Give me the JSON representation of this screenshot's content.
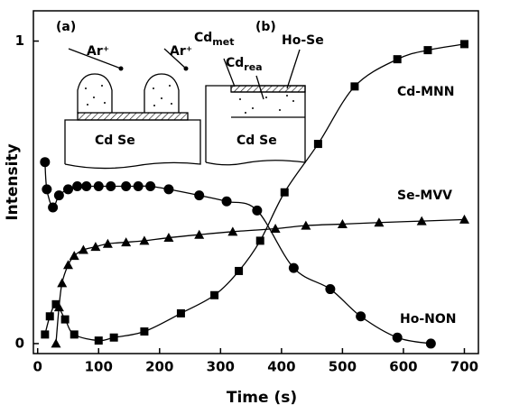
{
  "chart_data": {
    "type": "scatter",
    "x_label": "Time (s)",
    "y_label": "Intensity",
    "xlim": [
      -7,
      723
    ],
    "ylim": [
      -0.033,
      1.1
    ],
    "xticks": [
      0,
      100,
      200,
      300,
      400,
      500,
      600,
      700
    ],
    "yticks": [
      0,
      1
    ],
    "annotations": [
      "(a)",
      "(b)",
      "Ar⁺",
      "Ar⁺",
      "Cd Se",
      "Cd Se",
      "Ho-Se"
    ],
    "subscripted": [
      [
        "Cd",
        "met"
      ],
      [
        "Cd",
        "rea"
      ]
    ],
    "series": [
      {
        "name": "Cd-MNN",
        "marker": "square",
        "color": "#000000",
        "x": [
          12,
          20,
          30,
          45,
          60,
          100,
          125,
          175,
          235,
          290,
          330,
          365,
          405,
          460,
          520,
          590,
          640,
          700
        ],
        "values": [
          0.03,
          0.09,
          0.13,
          0.08,
          0.03,
          0.01,
          0.02,
          0.04,
          0.1,
          0.16,
          0.24,
          0.34,
          0.5,
          0.66,
          0.85,
          0.94,
          0.97,
          0.99
        ]
      },
      {
        "name": "Se-MVV",
        "marker": "triangle",
        "color": "#000000",
        "x": [
          30,
          35,
          40,
          50,
          60,
          75,
          95,
          115,
          145,
          175,
          215,
          265,
          320,
          390,
          440,
          500,
          560,
          630,
          700
        ],
        "values": [
          0.0,
          0.12,
          0.2,
          0.26,
          0.29,
          0.31,
          0.32,
          0.33,
          0.335,
          0.34,
          0.35,
          0.36,
          0.37,
          0.38,
          0.39,
          0.395,
          0.4,
          0.405,
          0.41
        ]
      },
      {
        "name": "Ho-NON",
        "marker": "circle",
        "color": "#000000",
        "x": [
          12,
          15,
          25,
          35,
          50,
          65,
          80,
          100,
          120,
          145,
          165,
          185,
          215,
          265,
          310,
          360,
          420,
          480,
          530,
          590,
          645
        ],
        "values": [
          0.6,
          0.51,
          0.45,
          0.49,
          0.51,
          0.52,
          0.52,
          0.52,
          0.52,
          0.52,
          0.52,
          0.52,
          0.51,
          0.49,
          0.47,
          0.44,
          0.25,
          0.18,
          0.09,
          0.02,
          0.0
        ]
      }
    ]
  }
}
